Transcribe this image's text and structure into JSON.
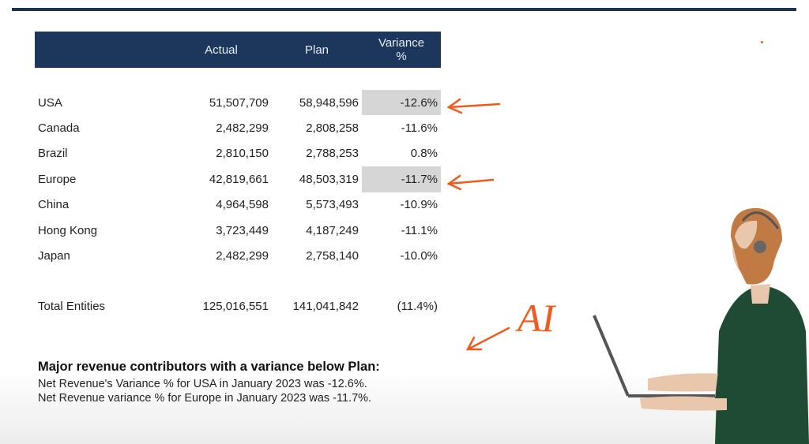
{
  "table": {
    "headers": [
      "",
      "Actual",
      "Plan",
      "Variance %"
    ],
    "rows": [
      {
        "name": "USA",
        "actual": "51,507,709",
        "plan": "58,948,596",
        "variance": "-12.6%",
        "highlight": true
      },
      {
        "name": "Canada",
        "actual": "2,482,299",
        "plan": "2,808,258",
        "variance": "-11.6%",
        "highlight": false
      },
      {
        "name": "Brazil",
        "actual": "2,810,150",
        "plan": "2,788,253",
        "variance": "0.8%",
        "highlight": false
      },
      {
        "name": "Europe",
        "actual": "42,819,661",
        "plan": "48,503,319",
        "variance": "-11.7%",
        "highlight": true
      },
      {
        "name": "China",
        "actual": "4,964,598",
        "plan": "5,573,493",
        "variance": "-10.9%",
        "highlight": false
      },
      {
        "name": "Hong Kong",
        "actual": "3,723,449",
        "plan": "4,187,249",
        "variance": "-11.1%",
        "highlight": false
      },
      {
        "name": "Japan",
        "actual": "2,482,299",
        "plan": "2,758,140",
        "variance": "-10.0%",
        "highlight": false
      }
    ],
    "total": {
      "name": "Total Entities",
      "actual": "125,016,551",
      "plan": "141,041,842",
      "variance": "(11.4%)"
    }
  },
  "summary": {
    "heading": "Major revenue contributors with a variance below Plan:",
    "lines": [
      "Net Revenue's Variance % for USA in January 2023 was -12.6%.",
      "Net Revenue variance % for Europe in January 2023 was -11.7%."
    ]
  },
  "annotation": {
    "label": "AI",
    "color": "#f05a1a"
  },
  "colors": {
    "header_bg": "#1c365c",
    "highlight": "#d6d6d6"
  }
}
